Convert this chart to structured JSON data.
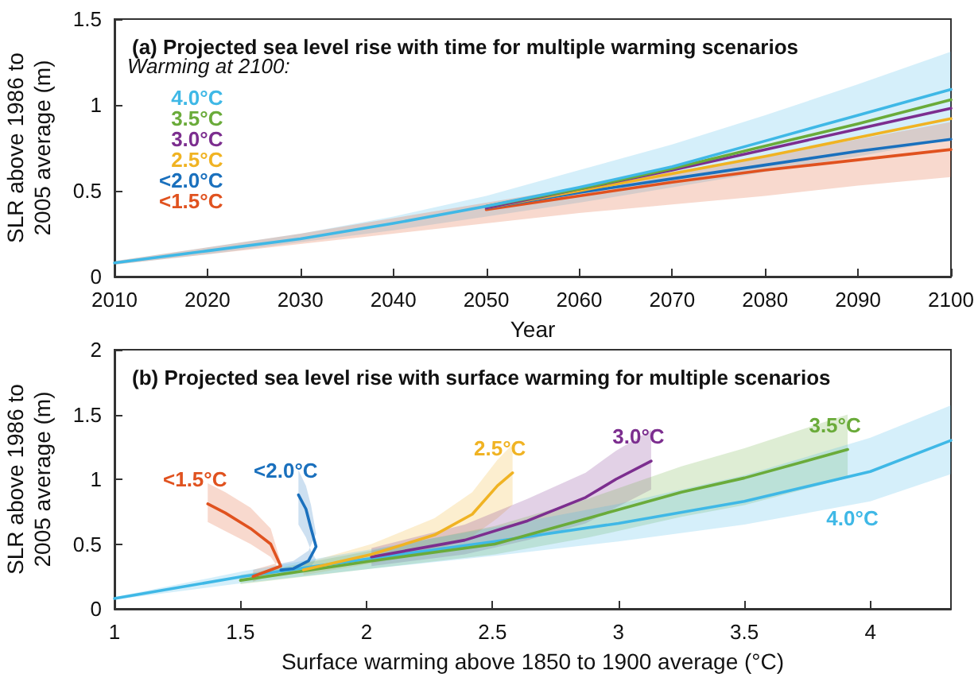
{
  "chart_data": [
    {
      "type": "line",
      "title": "(a) Projected sea level rise with time for multiple warming scenarios",
      "xlabel": "Year",
      "ylabel": "SLR above 1986 to 2005 average (m)",
      "legend_title": "Warming at 2100:",
      "legend": "left",
      "marker": "none",
      "xlim": [
        2010,
        2100
      ],
      "xticks": [
        2010,
        2020,
        2030,
        2040,
        2050,
        2060,
        2070,
        2080,
        2090,
        2100
      ],
      "ylim": [
        0,
        1.5
      ],
      "yticks": [
        0,
        0.5,
        1,
        1.5
      ],
      "x": [
        2010,
        2020,
        2030,
        2040,
        2050,
        2060,
        2070,
        2080,
        2090,
        2100
      ],
      "series": [
        {
          "name": "4.0°C",
          "color": "#3fb8e6",
          "values": [
            0.08,
            0.15,
            0.22,
            0.31,
            0.41,
            0.52,
            0.64,
            0.79,
            0.94,
            1.09
          ],
          "lower": [
            0.07,
            0.13,
            0.2,
            0.27,
            0.35,
            0.43,
            0.52,
            0.61,
            0.7,
            0.8
          ],
          "upper": [
            0.09,
            0.17,
            0.25,
            0.35,
            0.47,
            0.62,
            0.77,
            0.94,
            1.12,
            1.31
          ]
        },
        {
          "name": "3.5°C",
          "color": "#6aab3a",
          "values": [
            null,
            null,
            null,
            null,
            0.41,
            0.51,
            0.63,
            0.76,
            0.89,
            1.03
          ]
        },
        {
          "name": "3.0°C",
          "color": "#7c2e8f",
          "values": [
            null,
            null,
            null,
            null,
            0.4,
            0.51,
            0.62,
            0.74,
            0.86,
            0.98
          ]
        },
        {
          "name": "2.5°C",
          "color": "#f0b323",
          "values": [
            null,
            null,
            null,
            null,
            0.4,
            0.5,
            0.6,
            0.7,
            0.81,
            0.92
          ]
        },
        {
          "name": "<2.0°C",
          "color": "#1a70bd",
          "values": [
            null,
            null,
            null,
            null,
            0.4,
            0.49,
            0.57,
            0.65,
            0.73,
            0.8
          ]
        },
        {
          "name": "<1.5°C",
          "color": "#e0521f",
          "values": [
            null,
            null,
            null,
            null,
            0.39,
            0.47,
            0.55,
            0.62,
            0.68,
            0.74
          ],
          "lower": [
            0.07,
            0.13,
            0.19,
            0.25,
            0.31,
            0.37,
            0.42,
            0.47,
            0.53,
            0.58
          ],
          "upper": [
            0.09,
            0.17,
            0.25,
            0.34,
            0.43,
            0.52,
            0.61,
            0.7,
            0.8,
            0.9
          ]
        }
      ]
    },
    {
      "type": "line",
      "title": "(b) Projected sea level rise with surface warming for multiple scenarios",
      "xlabel": "Surface warming above 1850 to 1900 average (°C)",
      "ylabel": "SLR above 1986 to 2005 average (m)",
      "marker": "none",
      "xlim": [
        1,
        4.32
      ],
      "xticks": [
        1,
        1.5,
        2,
        2.5,
        3,
        3.5,
        4
      ],
      "ylim": [
        0,
        2
      ],
      "yticks": [
        0,
        0.5,
        1,
        1.5,
        2
      ],
      "series": [
        {
          "name": "<1.5°C",
          "color": "#e0521f",
          "x": [
            1.55,
            1.66,
            1.62,
            1.54,
            1.44,
            1.37
          ],
          "values": [
            0.25,
            0.33,
            0.5,
            0.62,
            0.74,
            0.81
          ],
          "lower": [
            0.21,
            0.29,
            0.4,
            0.5,
            0.6,
            0.67
          ],
          "upper": [
            0.3,
            0.36,
            0.62,
            0.78,
            0.9,
            0.97
          ]
        },
        {
          "name": "<2.0°C",
          "color": "#1a70bd",
          "x": [
            1.66,
            1.71,
            1.77,
            1.8,
            1.78,
            1.76,
            1.73
          ],
          "values": [
            0.3,
            0.31,
            0.37,
            0.48,
            0.62,
            0.77,
            0.88
          ],
          "lower": [
            0.26,
            0.27,
            0.3,
            0.38,
            0.45,
            0.55,
            0.65
          ],
          "upper": [
            0.35,
            0.37,
            0.45,
            0.58,
            0.8,
            0.95,
            1.07
          ]
        },
        {
          "name": "2.5°C",
          "color": "#f0b323",
          "x": [
            1.75,
            2.02,
            2.27,
            2.42,
            2.52,
            2.58
          ],
          "values": [
            0.3,
            0.42,
            0.57,
            0.73,
            0.95,
            1.05
          ],
          "lower": [
            0.26,
            0.35,
            0.45,
            0.56,
            0.7,
            0.8
          ],
          "upper": [
            0.35,
            0.5,
            0.7,
            0.9,
            1.15,
            1.27
          ]
        },
        {
          "name": "3.0°C",
          "color": "#7c2e8f",
          "x": [
            2.02,
            2.39,
            2.64,
            2.87,
            2.99,
            3.13
          ],
          "values": [
            0.4,
            0.53,
            0.68,
            0.86,
            1.0,
            1.14
          ],
          "lower": [
            0.33,
            0.42,
            0.53,
            0.66,
            0.78,
            0.92
          ],
          "upper": [
            0.47,
            0.65,
            0.85,
            1.05,
            1.22,
            1.38
          ]
        },
        {
          "name": "3.5°C",
          "color": "#6aab3a",
          "x": [
            1.5,
            2.02,
            2.51,
            2.88,
            3.25,
            3.5,
            3.91
          ],
          "values": [
            0.22,
            0.37,
            0.5,
            0.7,
            0.9,
            1.01,
            1.23
          ],
          "lower": [
            0.19,
            0.31,
            0.42,
            0.55,
            0.71,
            0.8,
            1.01
          ],
          "upper": [
            0.26,
            0.45,
            0.64,
            0.85,
            1.1,
            1.24,
            1.5
          ]
        },
        {
          "name": "4.0°C",
          "color": "#3fb8e6",
          "x": [
            1,
            1.51,
            2.02,
            2.51,
            3.0,
            3.5,
            4.0,
            4.32
          ],
          "values": [
            0.08,
            0.25,
            0.39,
            0.52,
            0.66,
            0.83,
            1.06,
            1.3
          ],
          "lower": [
            0.07,
            0.2,
            0.31,
            0.41,
            0.52,
            0.65,
            0.83,
            1.04
          ],
          "upper": [
            0.09,
            0.29,
            0.46,
            0.63,
            0.81,
            1.03,
            1.32,
            1.57
          ]
        }
      ]
    }
  ]
}
